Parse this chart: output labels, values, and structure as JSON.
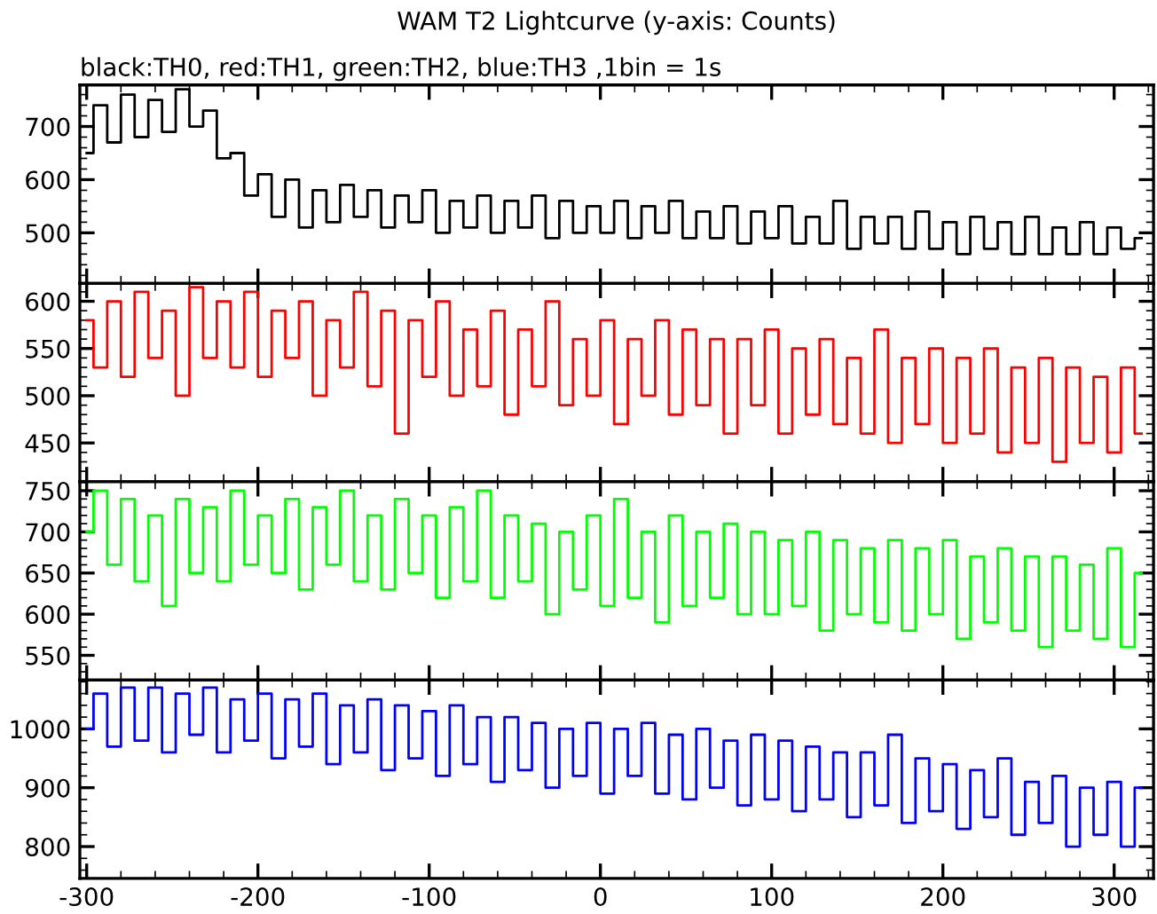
{
  "chart_data": [
    {
      "type": "step",
      "title": "WAM T2 Lightcurve (y-axis: Counts)",
      "subtitle": "black:TH0, red:TH1, green:TH2, blue:TH3 ,1bin = 1s",
      "tick_labels": "y",
      "xlim": [
        -304,
        323
      ],
      "xticks": [
        -300,
        -200,
        -100,
        0,
        100,
        200,
        300
      ],
      "ylim": [
        405,
        778
      ],
      "yticks": [
        500,
        600,
        700
      ],
      "x": [
        -300,
        -292,
        -284,
        -276,
        -268,
        -260,
        -252,
        -244,
        -236,
        -228,
        -220,
        -212,
        -204,
        -196,
        -188,
        -180,
        -172,
        -164,
        -156,
        -148,
        -140,
        -132,
        -124,
        -116,
        -108,
        -100,
        -92,
        -84,
        -76,
        -68,
        -60,
        -52,
        -44,
        -36,
        -28,
        -20,
        -12,
        -4,
        4,
        12,
        20,
        28,
        36,
        44,
        52,
        60,
        68,
        76,
        84,
        92,
        100,
        108,
        116,
        124,
        132,
        140,
        148,
        156,
        164,
        172,
        180,
        188,
        196,
        204,
        212,
        220,
        228,
        236,
        244,
        252,
        260,
        268,
        276,
        284,
        292,
        300,
        308,
        316
      ],
      "series": [
        {
          "color": "#000000",
          "values": [
            650,
            740,
            670,
            760,
            680,
            750,
            690,
            770,
            700,
            730,
            640,
            650,
            570,
            610,
            530,
            600,
            510,
            580,
            520,
            590,
            530,
            580,
            510,
            570,
            520,
            580,
            500,
            560,
            510,
            570,
            500,
            560,
            510,
            570,
            490,
            560,
            500,
            550,
            500,
            560,
            490,
            550,
            500,
            560,
            490,
            540,
            490,
            550,
            480,
            540,
            490,
            550,
            480,
            530,
            480,
            560,
            470,
            530,
            480,
            530,
            470,
            540,
            470,
            520,
            460,
            530,
            470,
            520,
            460,
            530,
            460,
            510,
            460,
            520,
            460,
            510,
            470,
            490
          ]
        }
      ]
    },
    {
      "type": "step",
      "tick_labels": "y",
      "xlim": [
        -304,
        323
      ],
      "xticks": [
        -300,
        -200,
        -100,
        0,
        100,
        200,
        300
      ],
      "ylim": [
        409,
        619
      ],
      "yticks": [
        450,
        500,
        550,
        600
      ],
      "x": [
        -300,
        -292,
        -284,
        -276,
        -268,
        -260,
        -252,
        -244,
        -236,
        -228,
        -220,
        -212,
        -204,
        -196,
        -188,
        -180,
        -172,
        -164,
        -156,
        -148,
        -140,
        -132,
        -124,
        -116,
        -108,
        -100,
        -92,
        -84,
        -76,
        -68,
        -60,
        -52,
        -44,
        -36,
        -28,
        -20,
        -12,
        -4,
        4,
        12,
        20,
        28,
        36,
        44,
        52,
        60,
        68,
        76,
        84,
        92,
        100,
        108,
        116,
        124,
        132,
        140,
        148,
        156,
        164,
        172,
        180,
        188,
        196,
        204,
        212,
        220,
        228,
        236,
        244,
        252,
        260,
        268,
        276,
        284,
        292,
        300,
        308,
        316
      ],
      "series": [
        {
          "color": "#ff0000",
          "values": [
            580,
            530,
            600,
            520,
            610,
            540,
            590,
            500,
            615,
            540,
            600,
            530,
            610,
            520,
            590,
            540,
            600,
            500,
            580,
            530,
            610,
            510,
            590,
            460,
            580,
            520,
            600,
            500,
            570,
            510,
            590,
            480,
            570,
            510,
            600,
            490,
            560,
            500,
            580,
            470,
            560,
            500,
            580,
            480,
            570,
            490,
            560,
            460,
            560,
            490,
            570,
            460,
            550,
            480,
            560,
            470,
            540,
            460,
            570,
            450,
            540,
            470,
            550,
            450,
            540,
            460,
            550,
            440,
            530,
            450,
            540,
            430,
            530,
            450,
            520,
            440,
            530,
            460
          ]
        }
      ]
    },
    {
      "type": "step",
      "tick_labels": "y",
      "xlim": [
        -304,
        323
      ],
      "xticks": [
        -300,
        -200,
        -100,
        0,
        100,
        200,
        300
      ],
      "ylim": [
        520,
        761
      ],
      "yticks": [
        550,
        600,
        650,
        700,
        750
      ],
      "x": [
        -300,
        -292,
        -284,
        -276,
        -268,
        -260,
        -252,
        -244,
        -236,
        -228,
        -220,
        -212,
        -204,
        -196,
        -188,
        -180,
        -172,
        -164,
        -156,
        -148,
        -140,
        -132,
        -124,
        -116,
        -108,
        -100,
        -92,
        -84,
        -76,
        -68,
        -60,
        -52,
        -44,
        -36,
        -28,
        -20,
        -12,
        -4,
        4,
        12,
        20,
        28,
        36,
        44,
        52,
        60,
        68,
        76,
        84,
        92,
        100,
        108,
        116,
        124,
        132,
        140,
        148,
        156,
        164,
        172,
        180,
        188,
        196,
        204,
        212,
        220,
        228,
        236,
        244,
        252,
        260,
        268,
        276,
        284,
        292,
        300,
        308,
        316
      ],
      "series": [
        {
          "color": "#00ff00",
          "values": [
            700,
            750,
            660,
            740,
            640,
            720,
            610,
            740,
            650,
            730,
            640,
            750,
            660,
            720,
            650,
            740,
            630,
            730,
            660,
            750,
            640,
            720,
            630,
            740,
            650,
            720,
            620,
            730,
            640,
            750,
            620,
            720,
            640,
            710,
            600,
            700,
            630,
            720,
            610,
            740,
            620,
            700,
            590,
            720,
            610,
            700,
            620,
            710,
            600,
            700,
            600,
            690,
            610,
            700,
            580,
            690,
            600,
            680,
            590,
            690,
            580,
            680,
            600,
            690,
            570,
            670,
            590,
            680,
            580,
            670,
            560,
            670,
            580,
            660,
            570,
            680,
            560,
            650
          ]
        }
      ]
    },
    {
      "type": "step",
      "xlim": [
        -304,
        323
      ],
      "xticks": [
        -300,
        -200,
        -100,
        0,
        100,
        200,
        300
      ],
      "ylim": [
        746,
        1083
      ],
      "yticks": [
        800,
        900,
        1000
      ],
      "x": [
        -300,
        -292,
        -284,
        -276,
        -268,
        -260,
        -252,
        -244,
        -236,
        -228,
        -220,
        -212,
        -204,
        -196,
        -188,
        -180,
        -172,
        -164,
        -156,
        -148,
        -140,
        -132,
        -124,
        -116,
        -108,
        -100,
        -92,
        -84,
        -76,
        -68,
        -60,
        -52,
        -44,
        -36,
        -28,
        -20,
        -12,
        -4,
        4,
        12,
        20,
        28,
        36,
        44,
        52,
        60,
        68,
        76,
        84,
        92,
        100,
        108,
        116,
        124,
        132,
        140,
        148,
        156,
        164,
        172,
        180,
        188,
        196,
        204,
        212,
        220,
        228,
        236,
        244,
        252,
        260,
        268,
        276,
        284,
        292,
        300,
        308,
        316
      ],
      "series": [
        {
          "color": "#0000ff",
          "values": [
            1000,
            1060,
            970,
            1070,
            980,
            1070,
            960,
            1060,
            990,
            1070,
            960,
            1050,
            980,
            1060,
            950,
            1050,
            970,
            1060,
            940,
            1040,
            960,
            1050,
            930,
            1040,
            950,
            1030,
            920,
            1040,
            940,
            1020,
            910,
            1020,
            930,
            1010,
            900,
            1000,
            920,
            1010,
            890,
            1000,
            920,
            1010,
            890,
            990,
            880,
            1000,
            900,
            980,
            870,
            990,
            880,
            980,
            860,
            970,
            880,
            960,
            850,
            960,
            870,
            990,
            840,
            950,
            860,
            940,
            830,
            930,
            850,
            950,
            820,
            910,
            840,
            920,
            800,
            900,
            820,
            910,
            800,
            900
          ]
        }
      ]
    }
  ]
}
